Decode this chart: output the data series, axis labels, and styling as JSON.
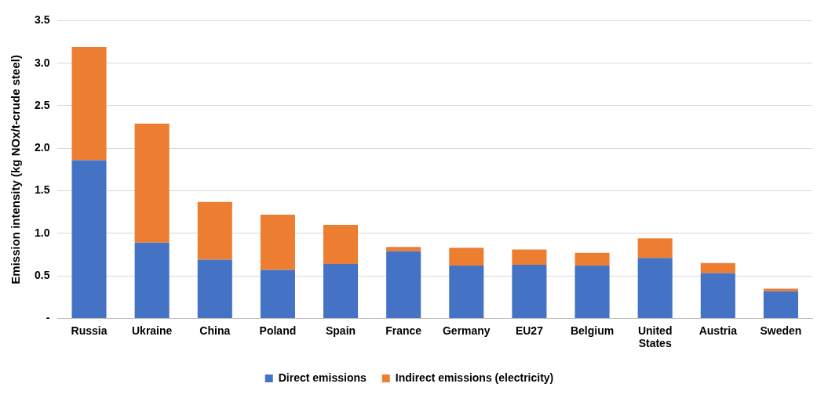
{
  "chart_data": {
    "type": "bar",
    "stacked": true,
    "ylabel": "Emission intensity (kg NOx/t-crude steel)",
    "categories": [
      "Russia",
      "Ukraine",
      "China",
      "Poland",
      "Spain",
      "France",
      "Germany",
      "EU27",
      "Belgium",
      "United States",
      "Austria",
      "Sweden"
    ],
    "series": [
      {
        "name": "Direct emissions",
        "color": "#4472c4",
        "values": [
          1.86,
          0.89,
          0.69,
          0.57,
          0.64,
          0.79,
          0.62,
          0.63,
          0.62,
          0.71,
          0.53,
          0.32
        ]
      },
      {
        "name": "Indirect emissions (electricity)",
        "color": "#ed7d31",
        "values": [
          1.33,
          1.4,
          0.68,
          0.65,
          0.46,
          0.05,
          0.21,
          0.18,
          0.15,
          0.23,
          0.12,
          0.03
        ]
      }
    ],
    "ylim": [
      0,
      3.5
    ],
    "yticks": [
      {
        "value": 0,
        "label": "-"
      },
      {
        "value": 0.5,
        "label": "0.5"
      },
      {
        "value": 1,
        "label": "1.0"
      },
      {
        "value": 1.5,
        "label": "1.5"
      },
      {
        "value": 2,
        "label": "2.0"
      },
      {
        "value": 2.5,
        "label": "2.5"
      },
      {
        "value": 3,
        "label": "3.0"
      },
      {
        "value": 3.5,
        "label": "3.5"
      }
    ],
    "grid": "y",
    "legend": "bottom"
  }
}
